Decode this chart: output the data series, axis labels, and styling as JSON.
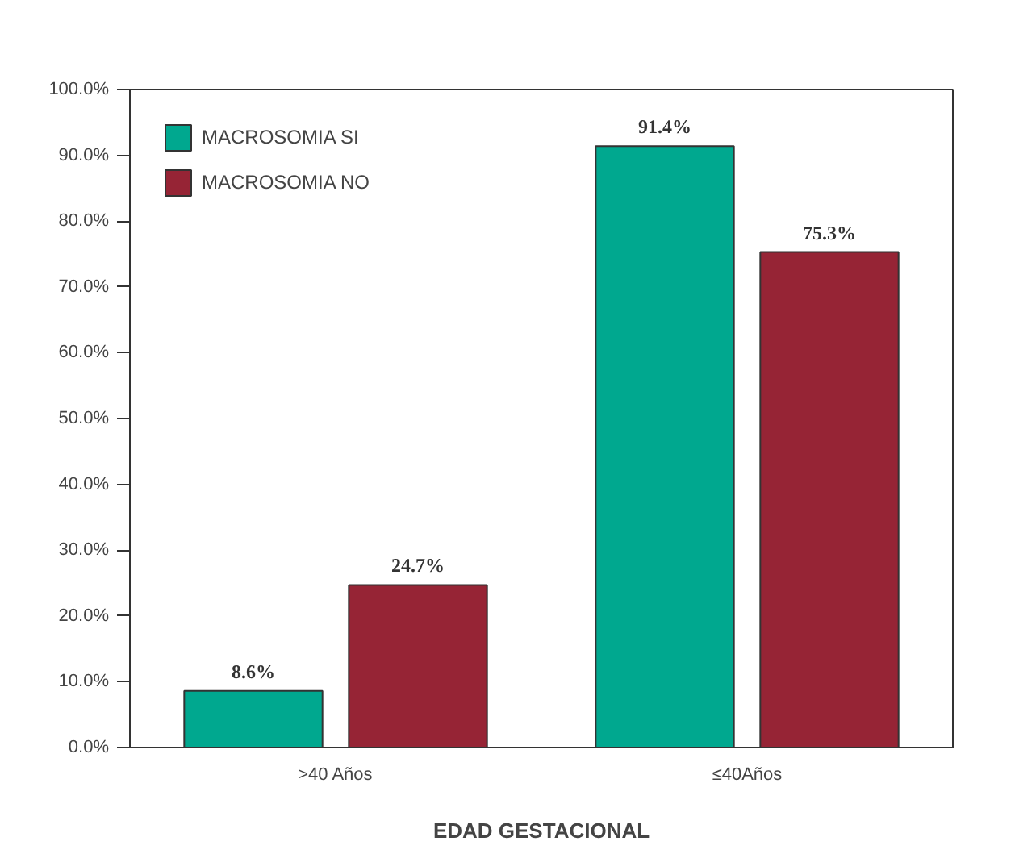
{
  "chart_data": {
    "type": "bar",
    "xlabel": "EDAD GESTACIONAL",
    "categories": [
      ">40 Años",
      "≤40Años"
    ],
    "series": [
      {
        "name": "MACROSOMIA SI",
        "color": "#00a88f",
        "values": [
          8.6,
          91.4
        ],
        "value_labels": [
          "8.6%",
          "91.4%"
        ]
      },
      {
        "name": "MACROSOMIA NO",
        "color": "#962435",
        "values": [
          24.7,
          75.3
        ],
        "value_labels": [
          "24.7%",
          "75.3%"
        ]
      }
    ],
    "ylim": [
      0,
      100
    ],
    "yticks": [
      {
        "value": 0,
        "label": "0.0%"
      },
      {
        "value": 10,
        "label": "10.0%"
      },
      {
        "value": 20,
        "label": "20.0%"
      },
      {
        "value": 30,
        "label": "30.0%"
      },
      {
        "value": 40,
        "label": "40.0%"
      },
      {
        "value": 50,
        "label": "50.0%"
      },
      {
        "value": 60,
        "label": "60.0%"
      },
      {
        "value": 70,
        "label": "70.0%"
      },
      {
        "value": 80,
        "label": "80.0%"
      },
      {
        "value": 90,
        "label": "90.0%"
      },
      {
        "value": 100,
        "label": "100.0%"
      }
    ],
    "grid": false,
    "legend": "top left"
  }
}
